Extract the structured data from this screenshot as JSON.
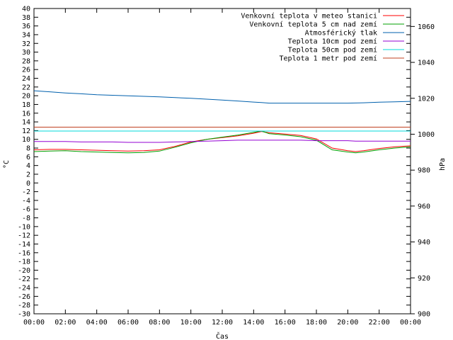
{
  "chart_data": {
    "type": "line",
    "title": "",
    "xlabel": "Čas",
    "ylabel": "°C",
    "y2label": "hPa",
    "ylim": [
      -30,
      40
    ],
    "y2lim": [
      900,
      1070
    ],
    "xlim": [
      0,
      24
    ],
    "x_ticks": [
      "00:00",
      "02:00",
      "04:00",
      "06:00",
      "08:00",
      "10:00",
      "12:00",
      "14:00",
      "16:00",
      "18:00",
      "20:00",
      "22:00",
      "00:00"
    ],
    "y_ticks": [
      40,
      38,
      36,
      34,
      32,
      30,
      28,
      26,
      24,
      22,
      20,
      18,
      16,
      14,
      12,
      10,
      8,
      6,
      4,
      2,
      0,
      -2,
      -4,
      -6,
      -8,
      -10,
      -12,
      -14,
      -16,
      -18,
      -20,
      -22,
      -24,
      -26,
      -28,
      -30
    ],
    "y2_ticks": [
      1060,
      1040,
      1020,
      1000,
      980,
      960,
      940,
      920,
      900
    ],
    "grid": false,
    "legend_position": "top-right",
    "x": [
      0,
      1,
      2,
      3,
      4,
      5,
      6,
      7,
      8,
      9,
      10,
      11,
      12,
      13,
      14,
      14.5,
      15,
      16,
      17,
      18,
      19,
      20,
      20.5,
      21,
      22,
      23,
      24
    ],
    "series": [
      {
        "name": "Venkovní teplota v meteo stanici",
        "color": "#ff0000",
        "axis": "left",
        "values": [
          7.6,
          7.7,
          7.7,
          7.6,
          7.5,
          7.4,
          7.3,
          7.4,
          7.6,
          8.4,
          9.4,
          10.0,
          10.4,
          10.8,
          11.4,
          11.8,
          11.5,
          11.2,
          10.9,
          10.1,
          8.0,
          7.4,
          7.2,
          7.4,
          7.9,
          8.3,
          8.5
        ]
      },
      {
        "name": "Venkovní teplota 5 cm nad zemí",
        "color": "#00a000",
        "axis": "left",
        "values": [
          7.2,
          7.3,
          7.4,
          7.2,
          7.1,
          7.0,
          6.9,
          7.0,
          7.3,
          8.2,
          9.2,
          10.0,
          10.5,
          11.0,
          11.6,
          11.9,
          11.3,
          11.0,
          10.6,
          9.8,
          7.6,
          7.1,
          6.9,
          7.1,
          7.6,
          8.0,
          8.3
        ]
      },
      {
        "name": "Atmosférický tlak",
        "color": "#0060ad",
        "axis": "right",
        "values": [
          1024.2,
          1023.6,
          1023.0,
          1022.5,
          1022.0,
          1021.7,
          1021.4,
          1021.1,
          1020.8,
          1020.4,
          1020.0,
          1019.5,
          1019.0,
          1018.5,
          1017.9,
          1017.6,
          1017.3,
          1017.3,
          1017.3,
          1017.3,
          1017.3,
          1017.3,
          1017.4,
          1017.5,
          1017.8,
          1018.0,
          1018.3
        ]
      },
      {
        "name": "Teplota 10cm pod zemí",
        "color": "#9400d3",
        "axis": "left",
        "values": [
          9.5,
          9.5,
          9.5,
          9.4,
          9.4,
          9.4,
          9.3,
          9.3,
          9.3,
          9.4,
          9.5,
          9.6,
          9.7,
          9.8,
          9.8,
          9.8,
          9.8,
          9.8,
          9.8,
          9.7,
          9.7,
          9.7,
          9.6,
          9.6,
          9.6,
          9.6,
          9.6
        ]
      },
      {
        "name": "Teplota 50cm pod zemí",
        "color": "#00d8d8",
        "axis": "left",
        "values": [
          11.9,
          11.9,
          11.9,
          11.9,
          11.9,
          11.9,
          11.9,
          11.9,
          11.9,
          11.9,
          11.9,
          11.9,
          11.9,
          11.9,
          11.9,
          11.9,
          11.9,
          11.9,
          11.9,
          11.9,
          11.9,
          11.9,
          11.9,
          11.9,
          11.9,
          11.9,
          11.9
        ]
      },
      {
        "name": "Teplota 1 metr pod zemí",
        "color": "#c04020",
        "axis": "left",
        "values": [
          12.8,
          12.8,
          12.8,
          12.8,
          12.8,
          12.8,
          12.8,
          12.8,
          12.8,
          12.8,
          12.8,
          12.8,
          12.8,
          12.8,
          12.8,
          12.8,
          12.8,
          12.8,
          12.8,
          12.8,
          12.8,
          12.8,
          12.8,
          12.8,
          12.8,
          12.8,
          12.8
        ]
      }
    ]
  }
}
